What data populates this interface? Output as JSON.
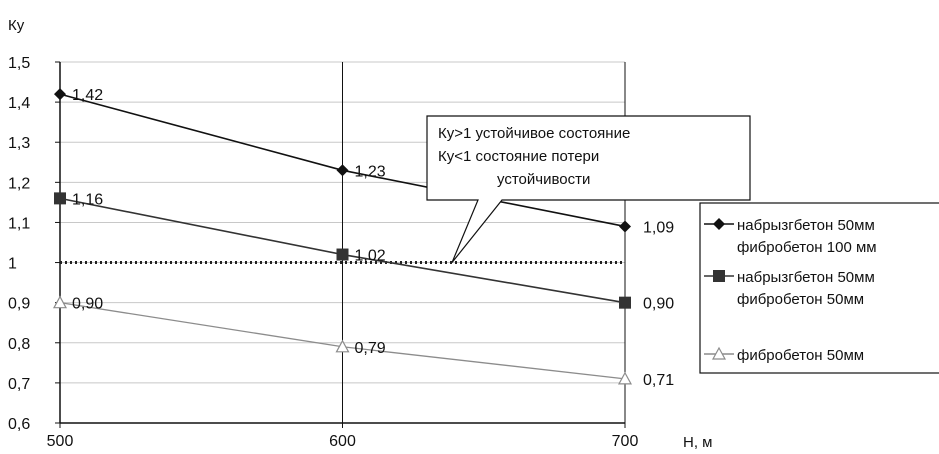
{
  "chart_data": {
    "type": "line",
    "ylabel": "Ку",
    "xlabel": "Н, м",
    "x": [
      500,
      600,
      700
    ],
    "x_ticks": [
      "500",
      "600",
      "700"
    ],
    "xlim": [
      500,
      700
    ],
    "ylim": [
      0.6,
      1.5
    ],
    "y_ticks": [
      "0,6",
      "0,7",
      "0,8",
      "0,9",
      "1",
      "1,1",
      "1,2",
      "1,3",
      "1,4",
      "1,5"
    ],
    "grid": "horizontal",
    "legend_position": "right",
    "series": [
      {
        "name_lines": [
          "набрызгбетон 50мм",
          "фибробетон 100 мм"
        ],
        "values": [
          1.42,
          1.23,
          1.09
        ],
        "labels": [
          "1,42",
          "1,23",
          "1,09"
        ],
        "marker": "diamond",
        "color": "#111111"
      },
      {
        "name_lines": [
          "набрызгбетон 50мм",
          "фибробетон 50мм"
        ],
        "values": [
          1.16,
          1.02,
          0.9
        ],
        "labels": [
          "1,16",
          "1,02",
          "0,90"
        ],
        "marker": "square",
        "color": "#333333"
      },
      {
        "name_lines": [
          "фибробетон 50мм"
        ],
        "values": [
          0.9,
          0.79,
          0.71
        ],
        "labels": [
          "0,90",
          "0,79",
          "0,71"
        ],
        "marker": "triangle",
        "color": "#8c8c8c"
      }
    ],
    "reference_line": {
      "y": 1,
      "style": "dotted"
    },
    "annotation": {
      "lines": [
        "Ку>1 устойчивое состояние",
        "Ку<1 состояние потери",
        "устойчивости"
      ]
    }
  }
}
